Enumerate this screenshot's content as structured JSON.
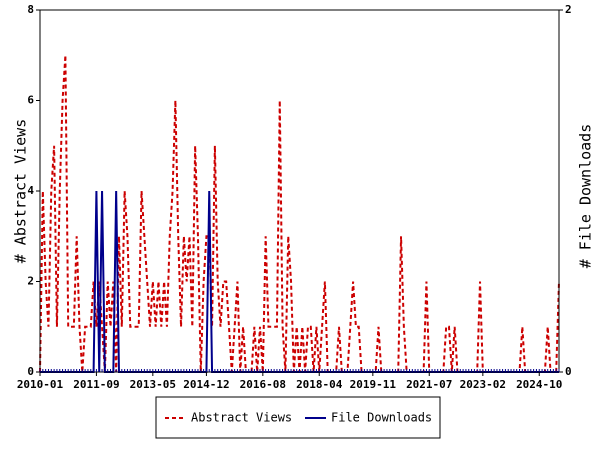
{
  "chart_data": {
    "type": "line",
    "xlabel": "",
    "ylabel_left": "# Abstract Views",
    "ylabel_right": "# File Downloads",
    "ylim_left": [
      0,
      8
    ],
    "ylim_right": [
      0,
      2
    ],
    "yticks_left": [
      "0",
      "2",
      "4",
      "6",
      "8"
    ],
    "yticks_right": [
      "0",
      "2"
    ],
    "x_tick_labels": [
      "2010-01",
      "2011-09",
      "2013-05",
      "2014-12",
      "2016-08",
      "2018-04",
      "2019-11",
      "2021-07",
      "2023-02",
      "2024-10"
    ],
    "x_range": [
      "2010-01",
      "2025-05"
    ],
    "grid": false,
    "legend_position": "bottom",
    "series": [
      {
        "name": "Abstract Views",
        "axis": "left",
        "color": "#cc0000",
        "style": "dashed",
        "points": [
          [
            "2010-01",
            0
          ],
          [
            "2010-02",
            4
          ],
          [
            "2010-03",
            2
          ],
          [
            "2010-04",
            1
          ],
          [
            "2010-05",
            4
          ],
          [
            "2010-06",
            5
          ],
          [
            "2010-07",
            1
          ],
          [
            "2010-08",
            4
          ],
          [
            "2010-09",
            6
          ],
          [
            "2010-10",
            7
          ],
          [
            "2010-11",
            1
          ],
          [
            "2010-12",
            1
          ],
          [
            "2011-01",
            1
          ],
          [
            "2011-02",
            3
          ],
          [
            "2011-03",
            1
          ],
          [
            "2011-04",
            0
          ],
          [
            "2011-05",
            1
          ],
          [
            "2011-06",
            1
          ],
          [
            "2011-07",
            1
          ],
          [
            "2011-08",
            2
          ],
          [
            "2011-09",
            1
          ],
          [
            "2011-10",
            2
          ],
          [
            "2011-11",
            1
          ],
          [
            "2011-12",
            0
          ],
          [
            "2012-01",
            2
          ],
          [
            "2012-02",
            1
          ],
          [
            "2012-03",
            2
          ],
          [
            "2012-04",
            0
          ],
          [
            "2012-05",
            3
          ],
          [
            "2012-06",
            1
          ],
          [
            "2012-07",
            4
          ],
          [
            "2012-08",
            3
          ],
          [
            "2012-09",
            1
          ],
          [
            "2012-10",
            1
          ],
          [
            "2012-11",
            1
          ],
          [
            "2012-12",
            1
          ],
          [
            "2013-01",
            4
          ],
          [
            "2013-02",
            3
          ],
          [
            "2013-03",
            2
          ],
          [
            "2013-04",
            1
          ],
          [
            "2013-05",
            2
          ],
          [
            "2013-06",
            1
          ],
          [
            "2013-07",
            2
          ],
          [
            "2013-08",
            1
          ],
          [
            "2013-09",
            2
          ],
          [
            "2013-10",
            1
          ],
          [
            "2013-11",
            3
          ],
          [
            "2013-12",
            4
          ],
          [
            "2014-01",
            6
          ],
          [
            "2014-02",
            3
          ],
          [
            "2014-03",
            1
          ],
          [
            "2014-04",
            3
          ],
          [
            "2014-05",
            2
          ],
          [
            "2014-06",
            3
          ],
          [
            "2014-07",
            1
          ],
          [
            "2014-08",
            5
          ],
          [
            "2014-09",
            3
          ],
          [
            "2014-10",
            0
          ],
          [
            "2014-11",
            2
          ],
          [
            "2014-12",
            3
          ],
          [
            "2015-01",
            3
          ],
          [
            "2015-02",
            1
          ],
          [
            "2015-03",
            5
          ],
          [
            "2015-04",
            2
          ],
          [
            "2015-05",
            1
          ],
          [
            "2015-06",
            2
          ],
          [
            "2015-07",
            2
          ],
          [
            "2015-08",
            1
          ],
          [
            "2015-09",
            0
          ],
          [
            "2015-10",
            1
          ],
          [
            "2015-11",
            2
          ],
          [
            "2015-12",
            0
          ],
          [
            "2016-01",
            1
          ],
          [
            "2016-02",
            0
          ],
          [
            "2016-03",
            0
          ],
          [
            "2016-04",
            0
          ],
          [
            "2016-05",
            1
          ],
          [
            "2016-06",
            0
          ],
          [
            "2016-07",
            1
          ],
          [
            "2016-08",
            0
          ],
          [
            "2016-09",
            3
          ],
          [
            "2016-10",
            1
          ],
          [
            "2016-11",
            1
          ],
          [
            "2016-12",
            1
          ],
          [
            "2017-01",
            1
          ],
          [
            "2017-02",
            6
          ],
          [
            "2017-03",
            1
          ],
          [
            "2017-04",
            0
          ],
          [
            "2017-05",
            3
          ],
          [
            "2017-06",
            2
          ],
          [
            "2017-07",
            0
          ],
          [
            "2017-08",
            1
          ],
          [
            "2017-09",
            0
          ],
          [
            "2017-10",
            1
          ],
          [
            "2017-11",
            0
          ],
          [
            "2017-12",
            1
          ],
          [
            "2018-01",
            1
          ],
          [
            "2018-02",
            0
          ],
          [
            "2018-03",
            1
          ],
          [
            "2018-04",
            0
          ],
          [
            "2018-05",
            1
          ],
          [
            "2018-06",
            2
          ],
          [
            "2018-07",
            0
          ],
          [
            "2018-08",
            0
          ],
          [
            "2018-09",
            0
          ],
          [
            "2018-10",
            0
          ],
          [
            "2018-11",
            1
          ],
          [
            "2018-12",
            0
          ],
          [
            "2019-01",
            0
          ],
          [
            "2019-02",
            0
          ],
          [
            "2019-03",
            1
          ],
          [
            "2019-04",
            2
          ],
          [
            "2019-05",
            1
          ],
          [
            "2019-06",
            1
          ],
          [
            "2019-07",
            0
          ],
          [
            "2019-08",
            0
          ],
          [
            "2019-09",
            0
          ],
          [
            "2019-10",
            0
          ],
          [
            "2019-11",
            0
          ],
          [
            "2019-12",
            0
          ],
          [
            "2020-01",
            1
          ],
          [
            "2020-02",
            0
          ],
          [
            "2020-03",
            0
          ],
          [
            "2020-04",
            0
          ],
          [
            "2020-05",
            0
          ],
          [
            "2020-06",
            0
          ],
          [
            "2020-07",
            0
          ],
          [
            "2020-08",
            0
          ],
          [
            "2020-09",
            3
          ],
          [
            "2020-10",
            1
          ],
          [
            "2020-11",
            0
          ],
          [
            "2020-12",
            0
          ],
          [
            "2021-01",
            0
          ],
          [
            "2021-02",
            0
          ],
          [
            "2021-03",
            0
          ],
          [
            "2021-04",
            0
          ],
          [
            "2021-05",
            0
          ],
          [
            "2021-06",
            2
          ],
          [
            "2021-07",
            0
          ],
          [
            "2021-08",
            0
          ],
          [
            "2021-09",
            0
          ],
          [
            "2021-10",
            0
          ],
          [
            "2021-11",
            0
          ],
          [
            "2021-12",
            0
          ],
          [
            "2022-01",
            1
          ],
          [
            "2022-02",
            1
          ],
          [
            "2022-03",
            0
          ],
          [
            "2022-04",
            1
          ],
          [
            "2022-05",
            0
          ],
          [
            "2022-06",
            0
          ],
          [
            "2022-07",
            0
          ],
          [
            "2022-08",
            0
          ],
          [
            "2022-09",
            0
          ],
          [
            "2022-10",
            0
          ],
          [
            "2022-11",
            0
          ],
          [
            "2022-12",
            0
          ],
          [
            "2023-01",
            2
          ],
          [
            "2023-02",
            0
          ],
          [
            "2023-03",
            0
          ],
          [
            "2023-04",
            0
          ],
          [
            "2023-05",
            0
          ],
          [
            "2023-06",
            0
          ],
          [
            "2023-07",
            0
          ],
          [
            "2023-08",
            0
          ],
          [
            "2023-09",
            0
          ],
          [
            "2023-10",
            0
          ],
          [
            "2023-11",
            0
          ],
          [
            "2023-12",
            0
          ],
          [
            "2024-01",
            0
          ],
          [
            "2024-02",
            0
          ],
          [
            "2024-03",
            0
          ],
          [
            "2024-04",
            1
          ],
          [
            "2024-05",
            0
          ],
          [
            "2024-06",
            0
          ],
          [
            "2024-07",
            0
          ],
          [
            "2024-08",
            0
          ],
          [
            "2024-09",
            0
          ],
          [
            "2024-10",
            0
          ],
          [
            "2024-11",
            0
          ],
          [
            "2024-12",
            0
          ],
          [
            "2025-01",
            1
          ],
          [
            "2025-02",
            0
          ],
          [
            "2025-03",
            0
          ],
          [
            "2025-04",
            0
          ],
          [
            "2025-05",
            2
          ]
        ]
      },
      {
        "name": "File Downloads",
        "axis": "right",
        "color": "#00008b",
        "style": "solid",
        "points": [
          [
            "2010-01",
            0
          ],
          [
            "2011-08",
            0
          ],
          [
            "2011-09",
            1
          ],
          [
            "2011-10",
            0
          ],
          [
            "2011-11",
            1
          ],
          [
            "2011-12",
            0
          ],
          [
            "2012-01",
            0
          ],
          [
            "2012-02",
            0
          ],
          [
            "2012-03",
            0
          ],
          [
            "2012-04",
            1
          ],
          [
            "2012-05",
            0
          ],
          [
            "2012-06",
            0
          ],
          [
            "2014-12",
            0
          ],
          [
            "2015-01",
            1
          ],
          [
            "2015-02",
            0
          ],
          [
            "2025-05",
            0
          ]
        ]
      }
    ]
  }
}
